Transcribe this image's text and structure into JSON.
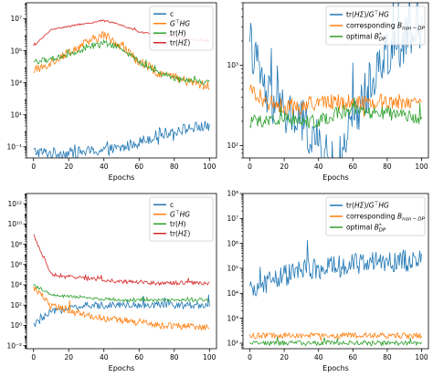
{
  "chart_data": [
    {
      "type": "line",
      "xlabel": "Epochs",
      "ylabel": "",
      "yscale": "log",
      "xlim": [
        -4,
        104
      ],
      "ylim": [
        0.02,
        100000000
      ],
      "xticks": [
        "0",
        "20",
        "40",
        "60",
        "80",
        "100"
      ],
      "yticks": [
        {
          "value": 0.1,
          "label": "10⁻¹"
        },
        {
          "value": 10,
          "label": "10¹"
        },
        {
          "value": 1000,
          "label": "10³"
        },
        {
          "value": 100000,
          "label": "10⁵"
        },
        {
          "value": 10000000,
          "label": "10⁷"
        }
      ],
      "legend": "top-right",
      "x": [
        0,
        10,
        20,
        30,
        40,
        50,
        60,
        70,
        80,
        90,
        100
      ],
      "series": [
        {
          "name": "c",
          "color": "#1f77b4",
          "values": [
            0.05,
            0.04,
            0.04,
            0.05,
            0.06,
            0.08,
            0.2,
            0.5,
            1,
            1.5,
            2
          ],
          "noise": 0.35
        },
        {
          "name": "G⊤HG",
          "color": "#ff7f0e",
          "values": [
            5000,
            20000,
            80000,
            300000,
            1000000,
            200000,
            20000,
            5000,
            2000,
            1000,
            600
          ],
          "noise": 0.3
        },
        {
          "name": "tr(H)",
          "color": "#2ca02c",
          "values": [
            20000,
            30000,
            60000,
            150000,
            300000,
            150000,
            20000,
            5000,
            2000,
            1500,
            1000
          ],
          "noise": 0.18
        },
        {
          "name": "tr(HΣ)",
          "color": "#d62728",
          "values": [
            200000,
            2000000,
            3500000,
            5000000,
            8000000,
            4000000,
            1500000,
            1000000,
            700000,
            500000,
            400000
          ],
          "noise": 0.05
        }
      ]
    },
    {
      "type": "line",
      "xlabel": "Epochs",
      "ylabel": "",
      "yscale": "log",
      "xlim": [
        -4,
        104
      ],
      "ylim": [
        70,
        6000
      ],
      "xticks": [
        "0",
        "20",
        "40",
        "60",
        "80",
        "100"
      ],
      "yticks": [
        {
          "value": 100,
          "label": "10²"
        },
        {
          "value": 1000,
          "label": "10³"
        }
      ],
      "legend": "top-right",
      "x": [
        0,
        10,
        20,
        30,
        40,
        50,
        60,
        70,
        80,
        90,
        100
      ],
      "series": [
        {
          "name": "tr(HΣ)/G⊤HG",
          "color": "#1f77b4",
          "values": [
            2000,
            400,
            250,
            200,
            100,
            50,
            200,
            600,
            1500,
            2000,
            2500
          ],
          "noise": 0.3
        },
        {
          "name": "corresponding B_non-DP",
          "color": "#ff7f0e",
          "values": [
            500,
            350,
            300,
            300,
            350,
            350,
            350,
            350,
            350,
            350,
            350
          ],
          "noise": 0.1
        },
        {
          "name": "optimal B*_DP",
          "color": "#2ca02c",
          "values": [
            200,
            200,
            220,
            200,
            200,
            250,
            280,
            250,
            250,
            230,
            230
          ],
          "noise": 0.08
        }
      ]
    },
    {
      "type": "line",
      "xlabel": "Epochs",
      "ylabel": "",
      "yscale": "log",
      "xlim": [
        -4,
        104
      ],
      "ylim": [
        0.005,
        10000000000000
      ],
      "xticks": [
        "0",
        "20",
        "40",
        "60",
        "80",
        "100"
      ],
      "yticks": [
        {
          "value": 0.01,
          "label": "10⁻²"
        },
        {
          "value": 1,
          "label": "10⁰"
        },
        {
          "value": 100,
          "label": "10²"
        },
        {
          "value": 10000,
          "label": "10⁴"
        },
        {
          "value": 1000000,
          "label": "10⁶"
        },
        {
          "value": 100000000,
          "label": "10⁸"
        },
        {
          "value": 10000000000,
          "label": "10¹⁰"
        },
        {
          "value": 1000000000000,
          "label": "10¹²"
        }
      ],
      "legend": "top-right",
      "x": [
        0,
        10,
        20,
        30,
        40,
        50,
        60,
        70,
        80,
        90,
        100
      ],
      "series": [
        {
          "name": "c",
          "color": "#1f77b4",
          "values": [
            1,
            20,
            50,
            80,
            100,
            120,
            100,
            100,
            100,
            100,
            100
          ],
          "noise": 0.35
        },
        {
          "name": "G⊤HG",
          "color": "#ff7f0e",
          "values": [
            5000,
            100,
            30,
            10,
            5,
            3,
            2,
            1,
            1,
            0.7,
            0.5
          ],
          "noise": 0.35
        },
        {
          "name": "tr(H)",
          "color": "#2ca02c",
          "values": [
            10000,
            1000,
            700,
            500,
            400,
            300,
            300,
            300,
            300,
            300,
            300
          ],
          "noise": 0.15
        },
        {
          "name": "tr(HΣ)",
          "color": "#d62728",
          "values": [
            1000000000,
            100000,
            60000,
            40000,
            30000,
            20000,
            20000,
            15000,
            15000,
            15000,
            15000
          ],
          "noise": 0.2
        }
      ]
    },
    {
      "type": "line",
      "xlabel": "Epochs",
      "ylabel": "",
      "yscale": "log",
      "xlim": [
        -4,
        104
      ],
      "ylim": [
        60,
        100000000
      ],
      "xticks": [
        "0",
        "20",
        "40",
        "60",
        "80",
        "100"
      ],
      "yticks": [
        {
          "value": 100,
          "label": "10²"
        },
        {
          "value": 1000,
          "label": "10³"
        },
        {
          "value": 10000,
          "label": "10⁴"
        },
        {
          "value": 100000,
          "label": "10⁵"
        },
        {
          "value": 1000000,
          "label": "10⁶"
        },
        {
          "value": 10000000,
          "label": "10⁷"
        },
        {
          "value": 100000000,
          "label": "10⁸"
        }
      ],
      "legend": "top-right",
      "x": [
        0,
        10,
        20,
        30,
        40,
        50,
        60,
        70,
        80,
        90,
        100
      ],
      "series": [
        {
          "name": "tr(HΣ)/G⊤HG",
          "color": "#1f77b4",
          "values": [
            10000,
            30000,
            50000,
            80000,
            100000,
            120000,
            150000,
            150000,
            200000,
            200000,
            200000
          ],
          "noise": 0.45
        },
        {
          "name": "corresponding B_non-DP",
          "color": "#ff7f0e",
          "values": [
            200,
            200,
            200,
            200,
            200,
            200,
            200,
            200,
            200,
            200,
            200
          ],
          "noise": 0.12
        },
        {
          "name": "optimal B*_DP",
          "color": "#2ca02c",
          "values": [
            100,
            100,
            100,
            100,
            100,
            100,
            100,
            100,
            100,
            100,
            100
          ],
          "noise": 0.1
        }
      ]
    }
  ]
}
